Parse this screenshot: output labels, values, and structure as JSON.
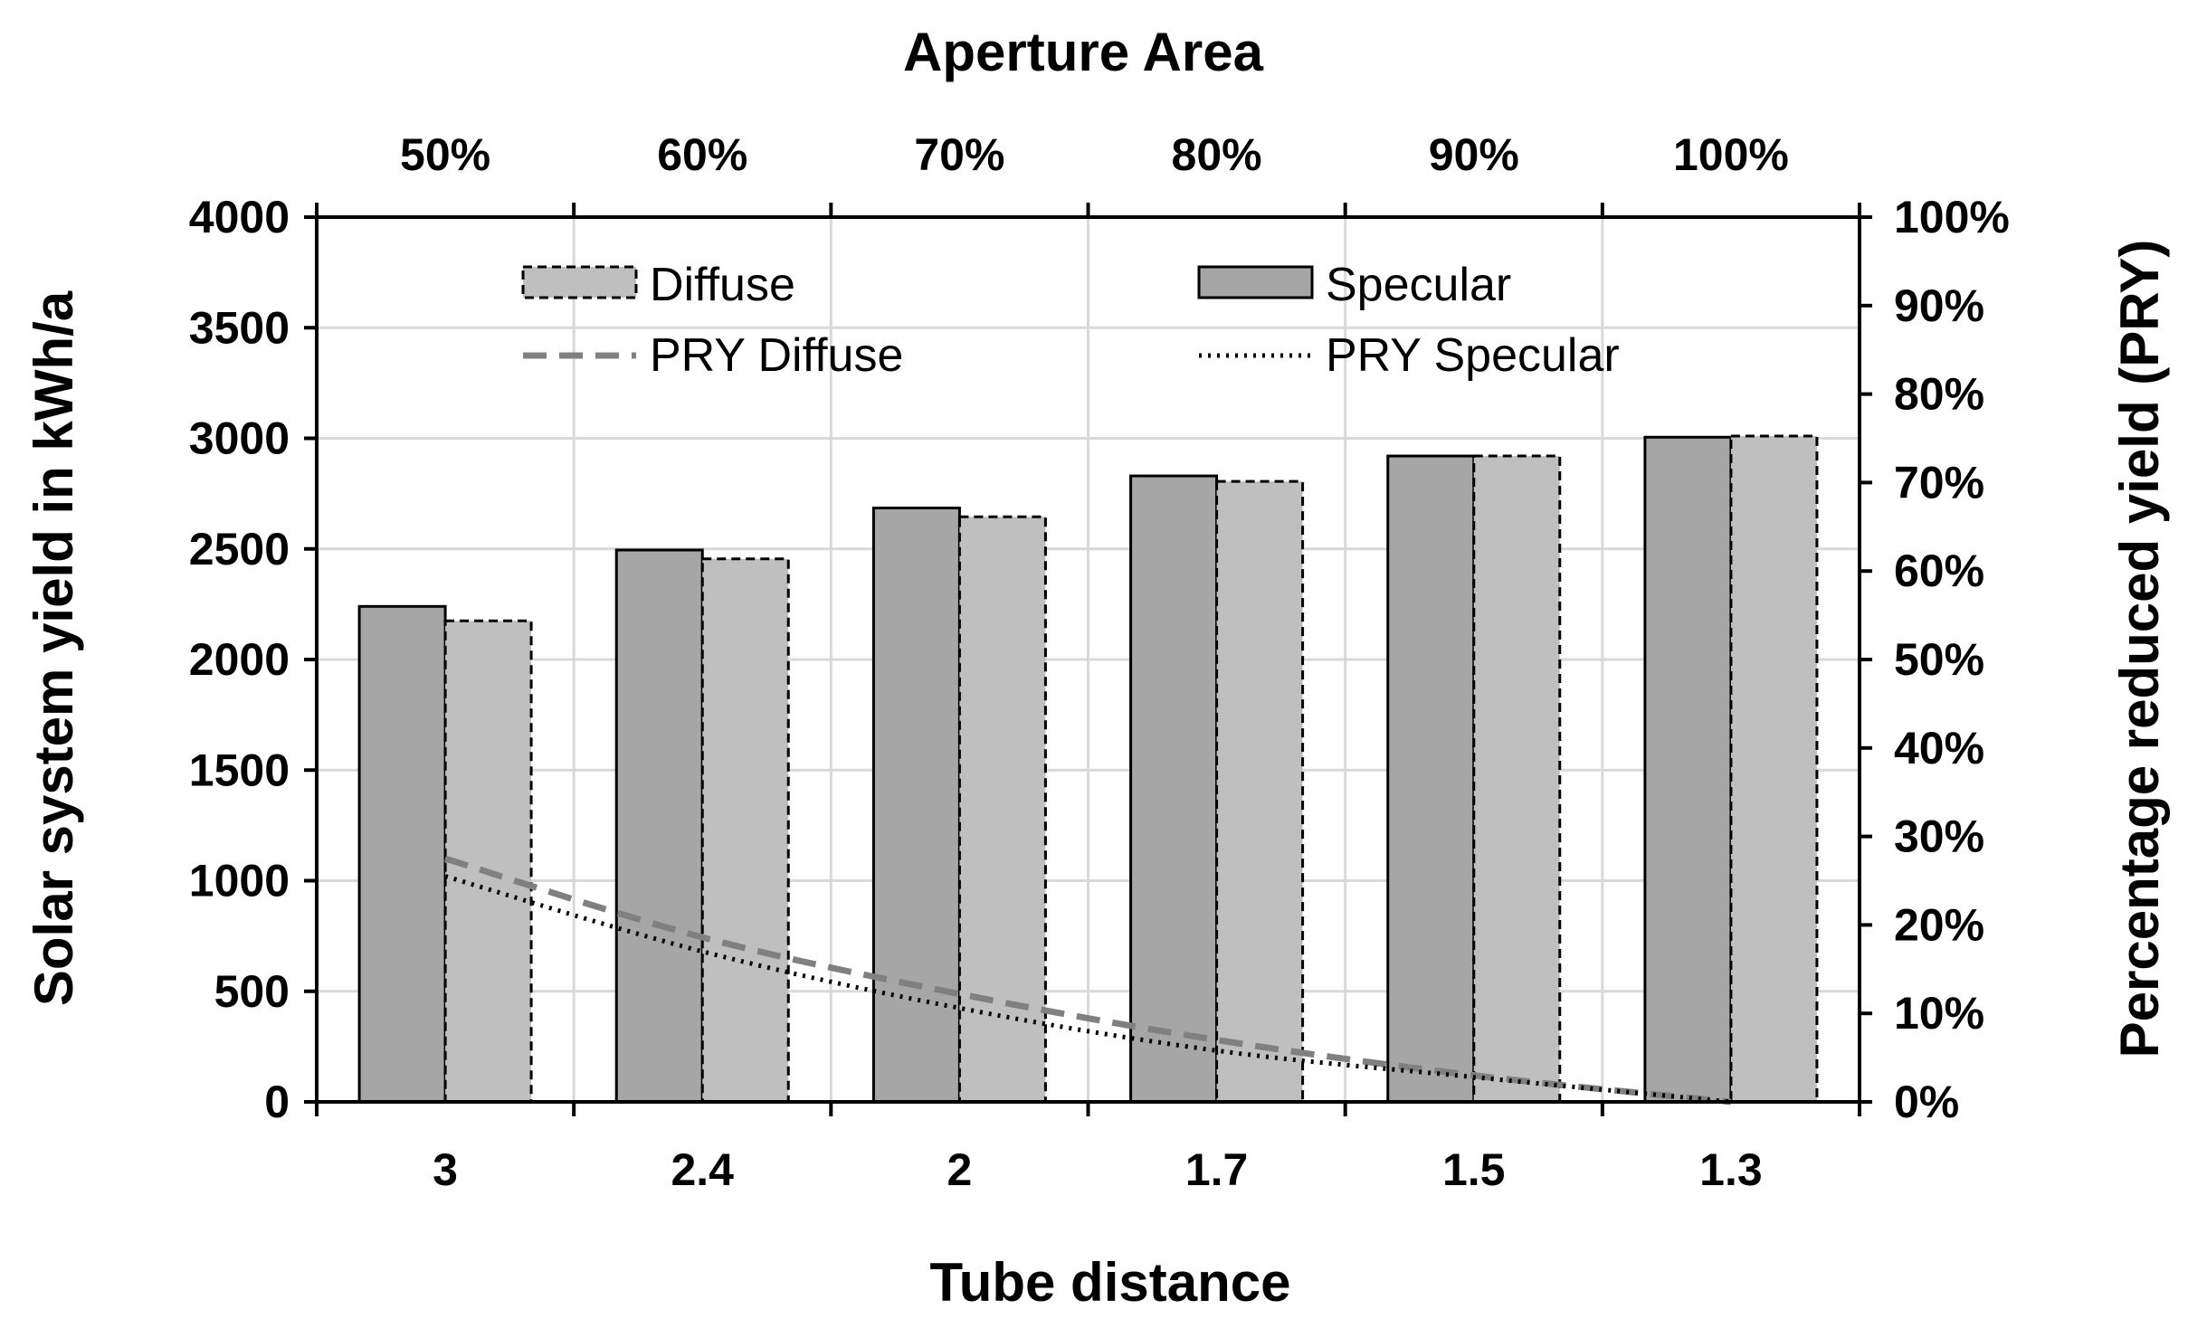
{
  "chart_data": {
    "type": "bar",
    "title": "",
    "top_axis_title": "Aperture Area",
    "top_categories": [
      "50%",
      "60%",
      "70%",
      "80%",
      "90%",
      "100%"
    ],
    "xlabel": "Tube distance",
    "ylabel": "Solar system yield in kWh/a",
    "y2label": "Percentage reduced yield (PRY)",
    "categories": [
      "3",
      "2.4",
      "2",
      "1.7",
      "1.5",
      "1.3"
    ],
    "ylim": [
      0,
      4000
    ],
    "yticks": [
      "0",
      "500",
      "1000",
      "1500",
      "2000",
      "2500",
      "3000",
      "3500",
      "4000"
    ],
    "y2lim": [
      0,
      100
    ],
    "y2ticks": [
      "0%",
      "10%",
      "20%",
      "30%",
      "40%",
      "50%",
      "60%",
      "70%",
      "80%",
      "90%",
      "100%"
    ],
    "grid": true,
    "legend_position": "top",
    "series": [
      {
        "name": "Specular",
        "kind": "bar",
        "axis": "left",
        "values": [
          2240,
          2495,
          2685,
          2830,
          2920,
          3005
        ],
        "color": "#a6a6a6",
        "border": "#000000"
      },
      {
        "name": "Diffuse",
        "kind": "bar",
        "axis": "left",
        "values": [
          2175,
          2455,
          2645,
          2805,
          2920,
          3010
        ],
        "color": "#bfbfbf",
        "border": "#000000"
      },
      {
        "name": "PRY Diffuse",
        "kind": "line",
        "axis": "right",
        "values": [
          27.5,
          18.6,
          12.2,
          7.0,
          3.0,
          0
        ],
        "color": "#808080"
      },
      {
        "name": "PRY Specular",
        "kind": "line",
        "axis": "right",
        "values": [
          25.5,
          17.0,
          10.6,
          5.8,
          2.8,
          0
        ],
        "color": "#000000"
      }
    ]
  }
}
